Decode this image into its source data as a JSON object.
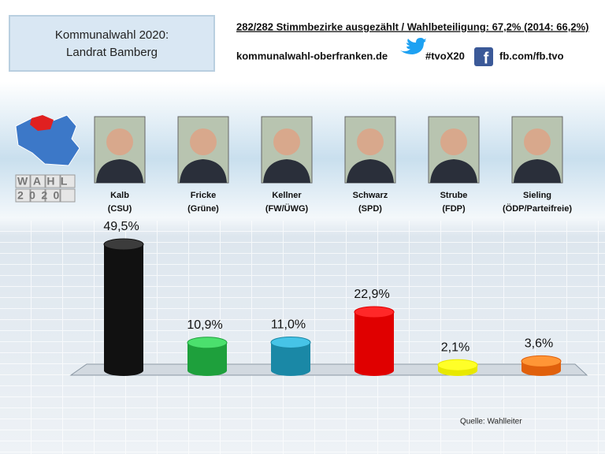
{
  "chart_data": {
    "type": "bar",
    "title": "Kommunalwahl 2020:",
    "subtitle": "Landrat Bamberg",
    "info": "282/282 Stimmbezirke ausgezählt / Wahlbeteiligung: 67,2% (2014: 66,2%)",
    "website": "kommunalwahl-oberfranken.de",
    "hashtag": "#tvoX20",
    "facebook": "fb.com/fb.tvo",
    "logo": {
      "top": "WAHL",
      "bottom": "2020"
    },
    "categories": [
      "Kalb",
      "Fricke",
      "Kellner",
      "Schwarz",
      "Strube",
      "Sieling"
    ],
    "parties": [
      "(CSU)",
      "(Grüne)",
      "(FW/ÜWG)",
      "(SPD)",
      "(FDP)",
      "(ÖDP/Parteifreie)"
    ],
    "values": [
      49.5,
      10.9,
      11.0,
      22.9,
      2.1,
      3.6
    ],
    "value_labels": [
      "49,5%",
      "10,9%",
      "11,0%",
      "22,9%",
      "2,1%",
      "3,6%"
    ],
    "colors": [
      "#111111",
      "#1ea03c",
      "#1a88a6",
      "#e00000",
      "#e8e800",
      "#e0600c"
    ],
    "source": "Quelle: Wahlleiter"
  }
}
